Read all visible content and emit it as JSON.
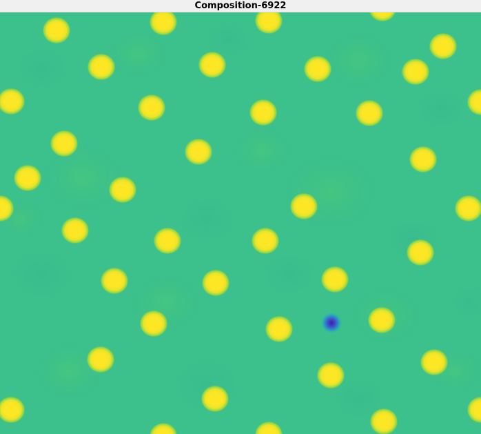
{
  "window": {
    "title": "Composition-6922"
  },
  "colors": {
    "background": "#3cc08c",
    "background_patch_a": "#38bc8e",
    "background_patch_b": "#44c47f",
    "spot_core": "#fde725",
    "spot_mid": "#e8e42b",
    "spot_edge": "#7ad151",
    "defect_core": "#3b1ea8",
    "defect_mid": "#3e4fc9",
    "defect_edge": "#26a4c4"
  },
  "icons": {
    "field": "pattern-field",
    "defect": "dark-defect-spot"
  }
}
